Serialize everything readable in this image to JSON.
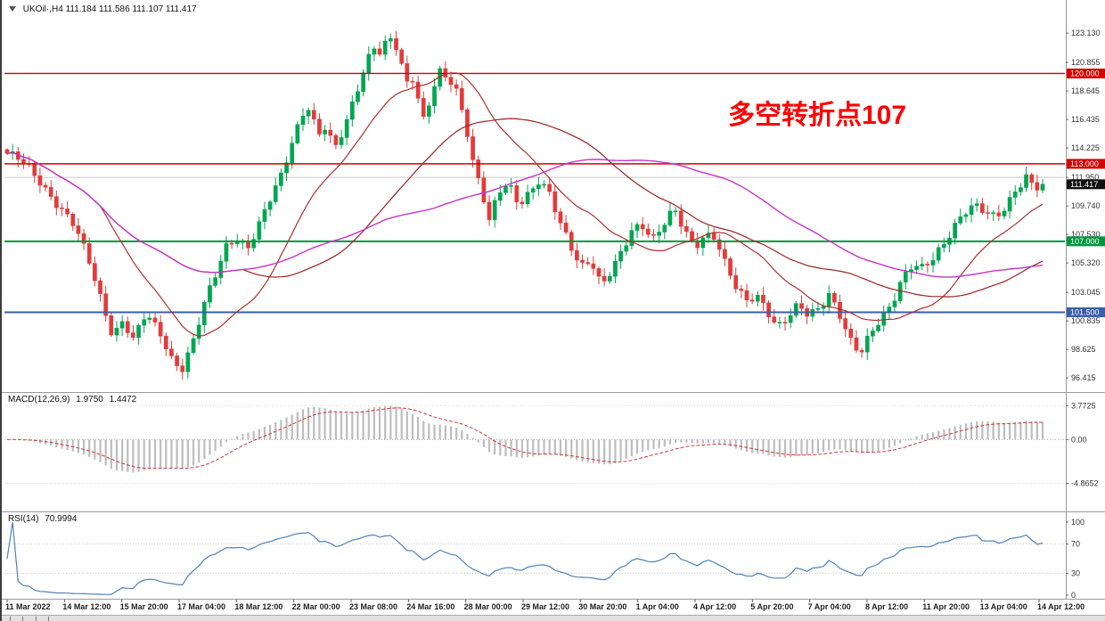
{
  "header": {
    "symbol": "UKOil·,H4",
    "ohlc": "111.184 111.586 111.107 111.417"
  },
  "annotation": {
    "text": "多空转折点107",
    "color": "#FF0000"
  },
  "chart_data": {
    "type": "candlestick",
    "symbol": "UKOil",
    "timeframe": "H4",
    "main": {
      "open": 111.184,
      "high": 111.586,
      "low": 111.107,
      "close": 111.417,
      "price_range": {
        "min": 95.6,
        "max": 125.0
      },
      "candle_count": 190,
      "colors": {
        "up": "#00A651",
        "down": "#E23B3B",
        "ma_fast": "#B03030",
        "ma_slow": "#9C2121",
        "ma_long": "#C733C7"
      },
      "y_ticks": [
        123.13,
        120.855,
        118.645,
        116.435,
        114.225,
        111.95,
        109.74,
        107.53,
        105.32,
        103.045,
        100.835,
        98.625,
        96.415
      ],
      "y_tags": [
        {
          "label": "120.000",
          "price": 120.0,
          "color": "#D40000"
        },
        {
          "label": "113.000",
          "price": 113.0,
          "color": "#D40000"
        },
        {
          "label": "111.417",
          "price": 111.417,
          "color": "#101010"
        },
        {
          "label": "107.000",
          "price": 107.0,
          "color": "#009640"
        },
        {
          "label": "101.500",
          "price": 101.5,
          "color": "#3A5FA8"
        }
      ],
      "hlines": [
        {
          "price": 111.95,
          "color": "#C9C9C9",
          "width": 1
        },
        {
          "price": 120.0,
          "color": "#D40000",
          "width": 1.4
        },
        {
          "price": 113.0,
          "color": "#D40000",
          "width": 1.4
        },
        {
          "price": 107.0,
          "color": "#009640",
          "width": 2
        },
        {
          "price": 101.5,
          "color": "#3A5FA8",
          "width": 2
        }
      ],
      "overlays": [
        {
          "name": "ma-fast-red",
          "period": 18,
          "color": "#B03030",
          "width": 1.2
        },
        {
          "name": "ma-slow-red",
          "period": 44,
          "color": "#9C2121",
          "width": 1.2
        },
        {
          "name": "ma-magenta",
          "period": 70,
          "color": "#C733C7",
          "width": 1.4
        }
      ],
      "price_path": [
        [
          0.0,
          113.8
        ],
        [
          0.012,
          113.3
        ],
        [
          0.03,
          111.8
        ],
        [
          0.05,
          109.8
        ],
        [
          0.065,
          108.2
        ],
        [
          0.08,
          105.2
        ],
        [
          0.092,
          102.2
        ],
        [
          0.102,
          99.8
        ],
        [
          0.112,
          100.9
        ],
        [
          0.122,
          99.3
        ],
        [
          0.134,
          101.3
        ],
        [
          0.148,
          99.9
        ],
        [
          0.16,
          97.8
        ],
        [
          0.17,
          97.2
        ],
        [
          0.18,
          99.3
        ],
        [
          0.192,
          102.4
        ],
        [
          0.203,
          104.8
        ],
        [
          0.213,
          107.0
        ],
        [
          0.222,
          107.3
        ],
        [
          0.232,
          106.4
        ],
        [
          0.242,
          107.9
        ],
        [
          0.254,
          110.2
        ],
        [
          0.265,
          112.2
        ],
        [
          0.275,
          114.8
        ],
        [
          0.285,
          116.9
        ],
        [
          0.292,
          117.4
        ],
        [
          0.3,
          115.0
        ],
        [
          0.308,
          115.8
        ],
        [
          0.316,
          114.0
        ],
        [
          0.326,
          116.0
        ],
        [
          0.336,
          118.4
        ],
        [
          0.346,
          120.7
        ],
        [
          0.354,
          122.0
        ],
        [
          0.361,
          121.4
        ],
        [
          0.369,
          122.7
        ],
        [
          0.377,
          121.9
        ],
        [
          0.385,
          119.3
        ],
        [
          0.393,
          119.9
        ],
        [
          0.401,
          116.3
        ],
        [
          0.409,
          118.1
        ],
        [
          0.417,
          120.0
        ],
        [
          0.426,
          119.5
        ],
        [
          0.434,
          118.5
        ],
        [
          0.442,
          116.5
        ],
        [
          0.45,
          113.2
        ],
        [
          0.458,
          111.2
        ],
        [
          0.466,
          108.5
        ],
        [
          0.474,
          110.7
        ],
        [
          0.484,
          111.3
        ],
        [
          0.494,
          109.8
        ],
        [
          0.504,
          110.8
        ],
        [
          0.514,
          111.9
        ],
        [
          0.524,
          110.7
        ],
        [
          0.534,
          108.3
        ],
        [
          0.544,
          106.5
        ],
        [
          0.554,
          105.0
        ],
        [
          0.564,
          105.7
        ],
        [
          0.574,
          103.7
        ],
        [
          0.584,
          104.8
        ],
        [
          0.594,
          106.1
        ],
        [
          0.604,
          107.8
        ],
        [
          0.614,
          108.2
        ],
        [
          0.624,
          107.3
        ],
        [
          0.634,
          108.5
        ],
        [
          0.644,
          109.5
        ],
        [
          0.654,
          107.7
        ],
        [
          0.664,
          106.4
        ],
        [
          0.674,
          107.5
        ],
        [
          0.684,
          107.5
        ],
        [
          0.694,
          105.3
        ],
        [
          0.704,
          103.4
        ],
        [
          0.714,
          102.2
        ],
        [
          0.724,
          102.7
        ],
        [
          0.734,
          101.7
        ],
        [
          0.744,
          100.5
        ],
        [
          0.754,
          101.2
        ],
        [
          0.764,
          102.0
        ],
        [
          0.774,
          101.1
        ],
        [
          0.784,
          101.7
        ],
        [
          0.794,
          103.0
        ],
        [
          0.804,
          101.5
        ],
        [
          0.814,
          99.4
        ],
        [
          0.824,
          98.2
        ],
        [
          0.834,
          99.7
        ],
        [
          0.844,
          101.0
        ],
        [
          0.854,
          102.2
        ],
        [
          0.864,
          104.2
        ],
        [
          0.874,
          105.2
        ],
        [
          0.884,
          104.8
        ],
        [
          0.894,
          105.5
        ],
        [
          0.904,
          106.7
        ],
        [
          0.914,
          108.2
        ],
        [
          0.924,
          109.4
        ],
        [
          0.934,
          109.8
        ],
        [
          0.944,
          109.2
        ],
        [
          0.954,
          108.7
        ],
        [
          0.964,
          109.6
        ],
        [
          0.974,
          111.1
        ],
        [
          0.984,
          112.1
        ],
        [
          0.993,
          111.1
        ],
        [
          1.0,
          111.417
        ]
      ]
    },
    "macd": {
      "title": "MACD(12,26,9)",
      "value_main": "1.9750",
      "value_signal": "1.4472",
      "params": [
        12,
        26,
        9
      ],
      "ticks": [
        {
          "label": "3.7725",
          "value": 3.7725
        },
        {
          "label": "0.00",
          "value": 0
        },
        {
          "label": "-4.8652",
          "value": -4.8652
        }
      ],
      "colors": {
        "histogram": "#BDBDBD",
        "signal": "#D23B3B"
      }
    },
    "rsi": {
      "title": "RSI(14)",
      "value": "70.9994",
      "period": 14,
      "ticks": [
        {
          "label": "100",
          "value": 100
        },
        {
          "label": "70",
          "value": 70
        },
        {
          "label": "30",
          "value": 30
        },
        {
          "label": "0",
          "value": 0
        }
      ],
      "levels": [
        70,
        30
      ],
      "color": "#4F81BD"
    },
    "x_axis": {
      "labels": [
        "11 Mar 2022",
        "14 Mar 12:00",
        "15 Mar 20:00",
        "17 Mar 04:00",
        "18 Mar 12:00",
        "22 Mar 00:00",
        "23 Mar 08:00",
        "24 Mar 16:00",
        "28 Mar 00:00",
        "29 Mar 12:00",
        "30 Mar 20:00",
        "1 Apr 04:00",
        "4 Apr 12:00",
        "5 Apr 20:00",
        "7 Apr 04:00",
        "8 Apr 12:00",
        "11 Apr 20:00",
        "13 Apr 04:00",
        "14 Apr 12:00"
      ]
    }
  }
}
